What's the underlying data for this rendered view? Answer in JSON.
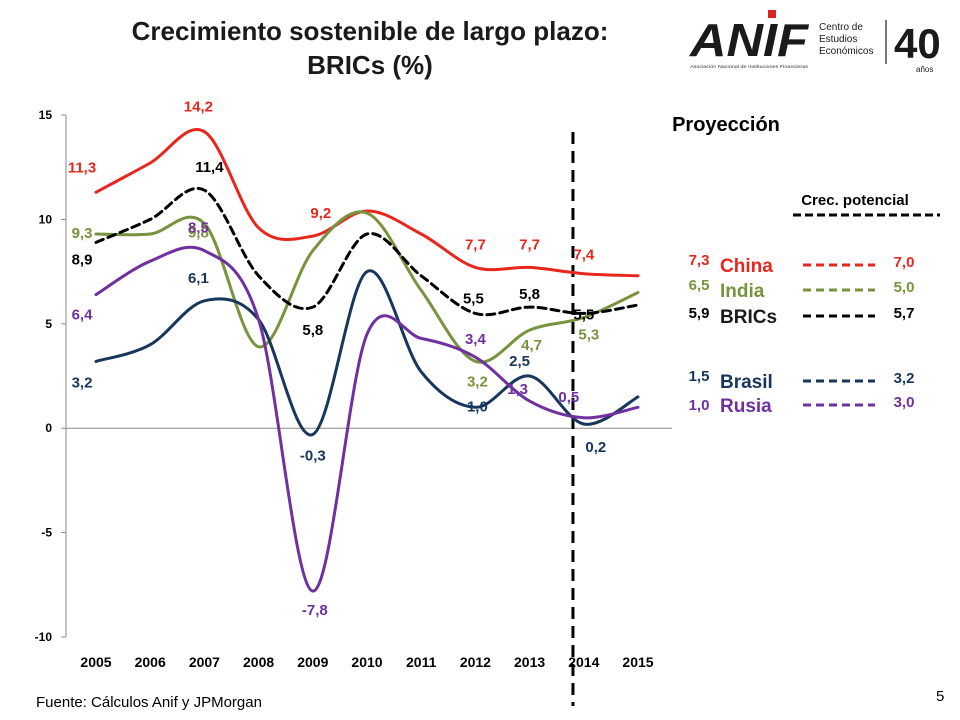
{
  "title": {
    "line1": "Crecimiento sostenible de largo plazo:",
    "line2": "BRICs  (%)"
  },
  "logo": {
    "mark": "ANIF",
    "tagline": "Asociación Nacional de Instituciones Financieras",
    "centro_line1": "Centro de",
    "centro_line2": "Estudios",
    "centro_line3": "Económicos",
    "anniversary": "40",
    "anniversary_sub": "años"
  },
  "footer": {
    "source": "Fuente: Cálculos Anif y  JPMorgan",
    "page_number": "5"
  },
  "chart_data": {
    "type": "line",
    "projection_label": "Proyección",
    "projection_start_x": 2013.8,
    "potential_header": "Crec. potencial",
    "x": [
      2005,
      2006,
      2007,
      2008,
      2009,
      2010,
      2011,
      2012,
      2013,
      2014,
      2015
    ],
    "x_tick_labels": [
      "2005",
      "2006",
      "2007",
      "2008",
      "2009",
      "2010",
      "2011",
      "2012",
      "2013",
      "2014",
      "2015"
    ],
    "ylim": [
      -10,
      15
    ],
    "y_ticks": [
      -10,
      -5,
      0,
      5,
      10,
      15
    ],
    "y_tick_labels": [
      "-10",
      "-5",
      "0",
      "5",
      "10",
      "15"
    ],
    "grid": false,
    "series": [
      {
        "name": "China",
        "color": "#e8261d",
        "dashed": false,
        "values": [
          11.3,
          12.7,
          14.2,
          9.6,
          9.2,
          10.4,
          9.3,
          7.7,
          7.7,
          7.4,
          7.3
        ],
        "point_labels": [
          {
            "x": 2005,
            "y": 11.3,
            "text": "11,3"
          },
          {
            "x": 2007,
            "y": 14.2,
            "text": "14,2"
          },
          {
            "x": 2009,
            "y": 9.2,
            "text": "9,2"
          },
          {
            "x": 2012,
            "y": 7.7,
            "text": "7,7"
          },
          {
            "x": 2013,
            "y": 7.7,
            "text": "7,7"
          },
          {
            "x": 2014,
            "y": 7.4,
            "text": "7,4"
          }
        ],
        "last_value_label": "7,3",
        "potential_label": "7,0"
      },
      {
        "name": "India",
        "color": "#77933c",
        "dashed": false,
        "values": [
          9.3,
          9.3,
          9.8,
          3.9,
          8.5,
          10.3,
          6.6,
          3.2,
          4.7,
          5.3,
          6.5
        ],
        "point_labels": [
          {
            "x": 2005,
            "y": 9.3,
            "text": "9,3"
          },
          {
            "x": 2007,
            "y": 9.8,
            "text": "9,8"
          },
          {
            "x": 2012,
            "y": 3.2,
            "text": "3,2"
          },
          {
            "x": 2013,
            "y": 4.7,
            "text": "4,7"
          },
          {
            "x": 2014,
            "y": 5.3,
            "text": "5,3"
          }
        ],
        "last_value_label": "6,5",
        "potential_label": "5,0"
      },
      {
        "name": "BRICs",
        "color": "#000000",
        "dashed": true,
        "values": [
          8.9,
          10.0,
          11.4,
          7.3,
          5.8,
          9.3,
          7.3,
          5.5,
          5.8,
          5.5,
          5.9
        ],
        "point_labels": [
          {
            "x": 2005,
            "y": 8.9,
            "text": "8,9"
          },
          {
            "x": 2007,
            "y": 11.4,
            "text": "11,4"
          },
          {
            "x": 2009,
            "y": 5.8,
            "text": "5,8"
          },
          {
            "x": 2012,
            "y": 5.5,
            "text": "5,5"
          },
          {
            "x": 2013,
            "y": 5.8,
            "text": "5,8"
          },
          {
            "x": 2014,
            "y": 5.5,
            "text": "5,5"
          }
        ],
        "last_value_label": "5,9",
        "potential_label": "5,7"
      },
      {
        "name": "Brasil",
        "color": "#17365d",
        "dashed": false,
        "values": [
          3.2,
          4.0,
          6.1,
          5.2,
          -0.3,
          7.5,
          2.7,
          1.0,
          2.5,
          0.2,
          1.5
        ],
        "point_labels": [
          {
            "x": 2005,
            "y": 3.2,
            "text": "3,2"
          },
          {
            "x": 2007,
            "y": 6.1,
            "text": "6,1"
          },
          {
            "x": 2009,
            "y": -0.3,
            "text": "-0,3"
          },
          {
            "x": 2012,
            "y": 1.0,
            "text": "1,0"
          },
          {
            "x": 2013,
            "y": 2.5,
            "text": "2,5"
          },
          {
            "x": 2014,
            "y": 0.2,
            "text": "0,2"
          }
        ],
        "last_value_label": "1,5",
        "potential_label": "3,2"
      },
      {
        "name": "Rusia",
        "color": "#7030a0",
        "dashed": false,
        "values": [
          6.4,
          8.0,
          8.5,
          5.2,
          -7.8,
          4.5,
          4.3,
          3.4,
          1.3,
          0.5,
          1.0
        ],
        "point_labels": [
          {
            "x": 2005,
            "y": 6.4,
            "text": "6,4"
          },
          {
            "x": 2007,
            "y": 8.5,
            "text": "8,5"
          },
          {
            "x": 2009,
            "y": -7.8,
            "text": "-7,8"
          },
          {
            "x": 2012,
            "y": 3.4,
            "text": "3,4"
          },
          {
            "x": 2013,
            "y": 1.3,
            "text": "1,3"
          },
          {
            "x": 2014,
            "y": 0.5,
            "text": "0,5"
          }
        ],
        "last_value_label": "1,0",
        "potential_label": "3,0"
      }
    ]
  }
}
